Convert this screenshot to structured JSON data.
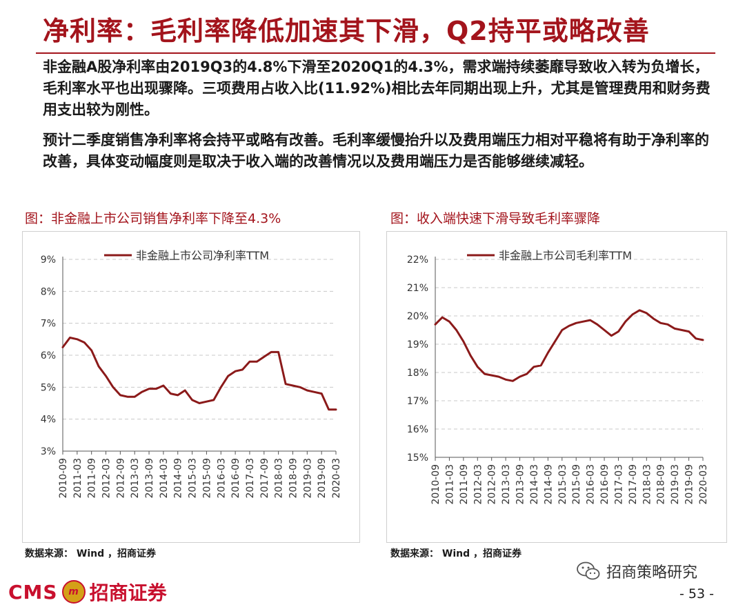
{
  "title": "净利率：毛利率降低加速其下滑，Q2持平或略改善",
  "paragraphs": [
    "非金融A股净利率由2019Q3的4.8%下滑至2020Q1的4.3%，需求端持续萎靡导致收入转为负增长，毛利率水平也出现骤降。三项费用占收入比(11.92%)相比去年同期出现上升，尤其是管理费用和财务费用支出较为刚性。",
    "预计二季度销售净利率将会持平或略有改善。毛利率缓慢抬升以及费用端压力相对平稳将有助于净利率的改善，具体变动幅度则是取决于收入端的改善情况以及费用端压力是否能够继续减轻。"
  ],
  "colors": {
    "accent": "#a3141c",
    "line": "#8b1a1a",
    "grid": "#c8c8c8"
  },
  "footer": {
    "cms": "CMS",
    "badge": "m",
    "brand": "招商证券",
    "wechat": "招商策略研究",
    "page": "- 53 -"
  },
  "chart_data": [
    {
      "type": "line",
      "title": "图：非金融上市公司销售净利率下降至4.3%",
      "source": "数据来源： Wind ，招商证券",
      "legend": "非金融上市公司净利率TTM",
      "legend_position": "top",
      "ylim": [
        3,
        9
      ],
      "y_ticks": [
        3,
        4,
        5,
        6,
        7,
        8,
        9
      ],
      "y_tick_labels": [
        "3%",
        "4%",
        "5%",
        "6%",
        "7%",
        "8%",
        "9%"
      ],
      "x_tick_labels": [
        "2010-09",
        "2011-03",
        "2011-09",
        "2012-03",
        "2012-09",
        "2013-03",
        "2013-09",
        "2014-03",
        "2014-09",
        "2015-03",
        "2015-09",
        "2016-03",
        "2016-09",
        "2017-03",
        "2017-09",
        "2018-03",
        "2018-09",
        "2019-03",
        "2019-09",
        "2020-03"
      ],
      "grid": true,
      "x": [
        "2010-09",
        "2010-12",
        "2011-03",
        "2011-06",
        "2011-09",
        "2011-12",
        "2012-03",
        "2012-06",
        "2012-09",
        "2012-12",
        "2013-03",
        "2013-06",
        "2013-09",
        "2013-12",
        "2014-03",
        "2014-06",
        "2014-09",
        "2014-12",
        "2015-03",
        "2015-06",
        "2015-09",
        "2015-12",
        "2016-03",
        "2016-06",
        "2016-09",
        "2016-12",
        "2017-03",
        "2017-06",
        "2017-09",
        "2017-12",
        "2018-03",
        "2018-06",
        "2018-09",
        "2018-12",
        "2019-03",
        "2019-06",
        "2019-09",
        "2019-12",
        "2020-03"
      ],
      "values": [
        6.25,
        6.55,
        6.5,
        6.4,
        6.15,
        5.65,
        5.35,
        5.0,
        4.75,
        4.7,
        4.7,
        4.85,
        4.95,
        4.95,
        5.05,
        4.8,
        4.75,
        4.9,
        4.6,
        4.5,
        4.55,
        4.6,
        5.0,
        5.35,
        5.5,
        5.55,
        5.8,
        5.8,
        5.95,
        6.1,
        6.1,
        5.1,
        5.05,
        5.0,
        4.9,
        4.85,
        4.8,
        4.3,
        4.3
      ]
    },
    {
      "type": "line",
      "title": "图：收入端快速下滑导致毛利率骤降",
      "source": "数据来源： Wind ，招商证券",
      "legend": "非金融上市公司毛利率TTM",
      "legend_position": "top",
      "ylim": [
        15,
        22
      ],
      "y_ticks": [
        15,
        16,
        17,
        18,
        19,
        20,
        21,
        22
      ],
      "y_tick_labels": [
        "15%",
        "16%",
        "17%",
        "18%",
        "19%",
        "20%",
        "21%",
        "22%"
      ],
      "x_tick_labels": [
        "2010-09",
        "2011-03",
        "2011-09",
        "2012-03",
        "2012-09",
        "2013-03",
        "2013-09",
        "2014-03",
        "2014-09",
        "2015-03",
        "2015-09",
        "2016-03",
        "2016-09",
        "2017-03",
        "2017-09",
        "2018-03",
        "2018-09",
        "2019-03",
        "2019-09",
        "2020-03"
      ],
      "grid": true,
      "x": [
        "2010-09",
        "2010-12",
        "2011-03",
        "2011-06",
        "2011-09",
        "2011-12",
        "2012-03",
        "2012-06",
        "2012-09",
        "2012-12",
        "2013-03",
        "2013-06",
        "2013-09",
        "2013-12",
        "2014-03",
        "2014-06",
        "2014-09",
        "2014-12",
        "2015-03",
        "2015-06",
        "2015-09",
        "2015-12",
        "2016-03",
        "2016-06",
        "2016-09",
        "2016-12",
        "2017-03",
        "2017-06",
        "2017-09",
        "2017-12",
        "2018-03",
        "2018-06",
        "2018-09",
        "2018-12",
        "2019-03",
        "2019-06",
        "2019-09",
        "2019-12",
        "2020-03"
      ],
      "values": [
        19.7,
        19.95,
        19.8,
        19.5,
        19.1,
        18.6,
        18.2,
        17.95,
        17.9,
        17.85,
        17.75,
        17.7,
        17.85,
        17.95,
        18.2,
        18.25,
        18.7,
        19.1,
        19.5,
        19.65,
        19.75,
        19.8,
        19.85,
        19.7,
        19.5,
        19.3,
        19.45,
        19.8,
        20.05,
        20.2,
        20.1,
        19.9,
        19.75,
        19.7,
        19.55,
        19.5,
        19.45,
        19.2,
        19.15
      ]
    }
  ]
}
